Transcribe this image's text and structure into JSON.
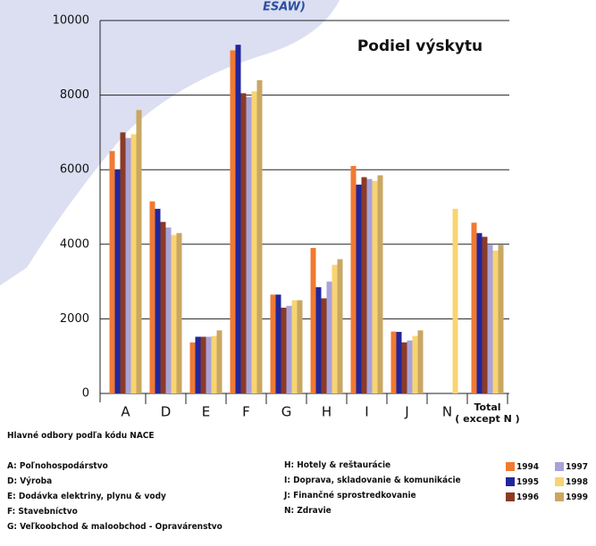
{
  "chart_data": {
    "type": "bar",
    "banner": "ESAW)",
    "title": "Podiel výskytu",
    "categories": [
      "A",
      "D",
      "E",
      "F",
      "G",
      "H",
      "I",
      "J",
      "N",
      "Total\n( except N )"
    ],
    "series": [
      {
        "name": "1994",
        "color": "#f07a32",
        "values": [
          6500,
          5150,
          1370,
          9200,
          2650,
          3900,
          6100,
          1660,
          null,
          4580
        ]
      },
      {
        "name": "1995",
        "color": "#22269a",
        "values": [
          6000,
          4950,
          1520,
          9350,
          2650,
          2850,
          5600,
          1650,
          null,
          4300
        ]
      },
      {
        "name": "1996",
        "color": "#8a3b26",
        "values": [
          7000,
          4600,
          1520,
          8050,
          2300,
          2550,
          5800,
          1370,
          null,
          4200
        ]
      },
      {
        "name": "1997",
        "color": "#a9a2d8",
        "values": [
          6850,
          4450,
          1520,
          7950,
          2350,
          3000,
          5750,
          1420,
          null,
          3980
        ]
      },
      {
        "name": "1998",
        "color": "#f8d472",
        "values": [
          6950,
          4250,
          1540,
          8100,
          2500,
          3450,
          5700,
          1540,
          4950,
          3830
        ]
      },
      {
        "name": "1999",
        "color": "#c9a763",
        "values": [
          7600,
          4300,
          1690,
          8400,
          2500,
          3600,
          5850,
          1690,
          null,
          3980
        ]
      }
    ],
    "ylim": [
      0,
      10000
    ],
    "yticks": [
      0,
      2000,
      4000,
      6000,
      8000,
      10000
    ],
    "grid": true,
    "caption": "Hlavné odbory podľa kódu NACE",
    "notes_left": [
      "A: Poľnohospodárstvo",
      "D: Výroba",
      "E: Dodávka elektriny, plynu & vody",
      "F: Stavebníctvo",
      "G: Veľkoobchod & maloobchod - Opravárenstvo"
    ],
    "notes_right": [
      "H: Hotely & reštaurácie",
      "I:  Doprava, skladovanie & komunikácie",
      "J:  Finančné sprostredkovanie",
      "N: Zdravie"
    ]
  }
}
